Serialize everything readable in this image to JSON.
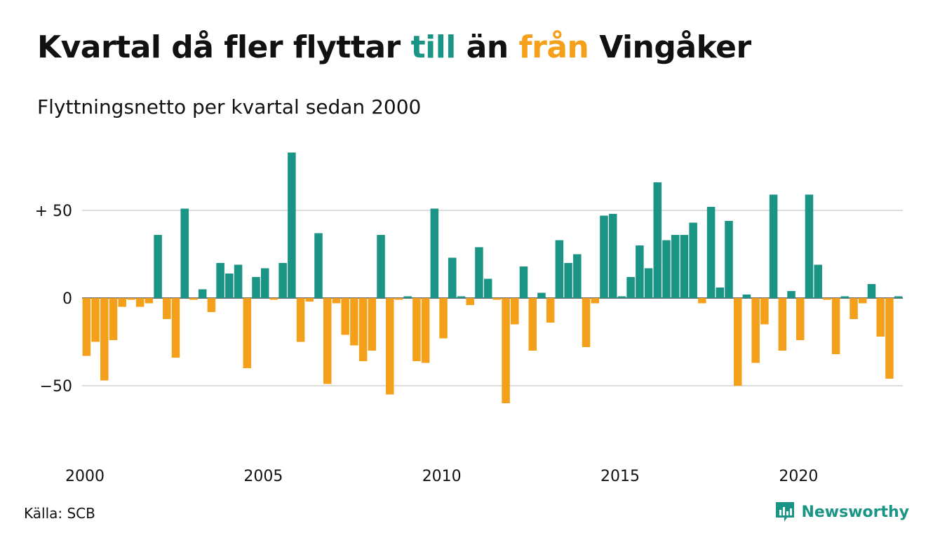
{
  "header": {
    "title_part1": "Kvartal då fler flyttar ",
    "title_in": "till",
    "title_part2": " än ",
    "title_out": "från",
    "title_part3": " Vingåker",
    "subtitle": "Flyttningsnetto per kvartal sedan 2000"
  },
  "footer": {
    "source": "Källa: SCB",
    "brand": "Newsworthy",
    "brand_icon": "newsworthy-logo-icon"
  },
  "colors": {
    "positive": "#1a9485",
    "negative": "#f5a01a",
    "gridline": "#dddddd",
    "text": "#111111"
  },
  "chart_data": {
    "type": "bar",
    "start_year": 2000,
    "start_quarter": 1,
    "periods_per_year": 4,
    "values": [
      -33,
      -25,
      -47,
      -24,
      -5,
      -1,
      -5,
      -3,
      36,
      -12,
      -34,
      51,
      -1,
      5,
      -8,
      20,
      14,
      19,
      -40,
      12,
      17,
      -1,
      20,
      83,
      -25,
      -2,
      37,
      -49,
      -3,
      -21,
      -27,
      -36,
      -30,
      36,
      -55,
      -1,
      1,
      -36,
      -37,
      51,
      -23,
      23,
      1,
      -4,
      29,
      11,
      -1,
      -60,
      -15,
      18,
      -30,
      3,
      -14,
      33,
      20,
      25,
      -28,
      -3,
      47,
      48,
      1,
      12,
      30,
      17,
      66,
      33,
      36,
      36,
      43,
      -3,
      52,
      6,
      44,
      -50,
      2,
      -37,
      -15,
      59,
      -30,
      4,
      -24,
      59,
      19,
      -1,
      -32,
      1,
      -12,
      -3,
      8,
      -22,
      -46,
      1
    ],
    "yticks": [
      {
        "value": 50,
        "label": "+ 50"
      },
      {
        "value": 0,
        "label": "0"
      },
      {
        "value": -50,
        "label": "−50"
      }
    ],
    "xticks": [
      "2000",
      "2005",
      "2010",
      "2015",
      "2020"
    ],
    "ylim": [
      -75,
      88
    ],
    "grid": true,
    "legend": "none (colours explained in title)"
  }
}
